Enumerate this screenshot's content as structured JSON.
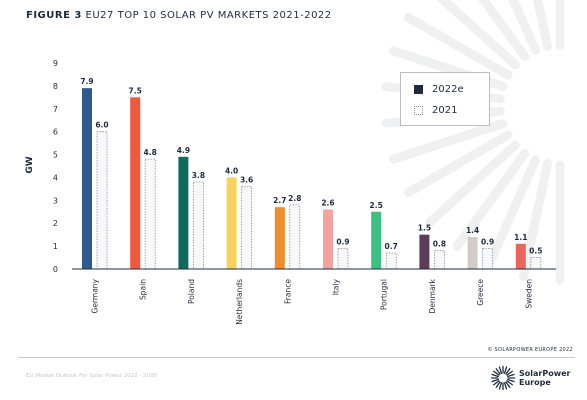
{
  "header": {
    "figure_label": "FIGURE 3",
    "title_rest": "EU27 TOP 10 SOLAR PV MARKETS 2021-2022"
  },
  "chart_data": {
    "type": "bar",
    "categories": [
      "Germany",
      "Spain",
      "Poland",
      "Netherlands",
      "France",
      "Italy",
      "Portugal",
      "Denmark",
      "Greece",
      "Sweden"
    ],
    "series": [
      {
        "name": "2022e",
        "values": [
          7.9,
          7.5,
          4.9,
          4.0,
          2.7,
          2.6,
          2.5,
          1.5,
          1.4,
          1.1
        ],
        "value_labels": [
          "7.9",
          "7.5",
          "4.9",
          "4.0",
          "2.7",
          "2.6",
          "2.5",
          "1.5",
          "1.4",
          "1.1"
        ],
        "colors": [
          "#2e5a8c",
          "#f05a3c",
          "#0e6b5c",
          "#f9d25e",
          "#f28c2a",
          "#f4a3a0",
          "#3fbf7f",
          "#5b3d57",
          "#d3cbc7",
          "#e8675a"
        ]
      },
      {
        "name": "2021",
        "values": [
          6.0,
          4.8,
          3.8,
          3.6,
          2.8,
          0.9,
          0.7,
          0.8,
          0.9,
          0.5
        ],
        "value_labels": [
          "6.0",
          "4.8",
          "3.8",
          "3.6",
          "2.8",
          "0.9",
          "0.7",
          "0.8",
          "0.9",
          "0.5"
        ],
        "style": "dotted-outline"
      }
    ],
    "ylabel": "GW",
    "ylim": [
      0,
      9
    ],
    "yticks": [
      "0",
      "1",
      "2",
      "3",
      "4",
      "5",
      "6",
      "7",
      "8",
      "9"
    ],
    "grid": false,
    "legend": {
      "position": "top-right",
      "items": [
        {
          "label": "2022e",
          "color": "#1f2b3d"
        },
        {
          "label": "2021",
          "color": "#ffffff"
        }
      ]
    }
  },
  "colors": {
    "text_dark": "#1f2b3d",
    "axis": "#1f2b3d",
    "outline_2021": "#8a8f99",
    "fill_2021": "#f7f8f9",
    "sunburst": "#eef0f2"
  },
  "footer": {
    "copyright": "© SOLARPOWER EUROPE 2022",
    "report_title": "EU Market Outlook For Solar Power 2022 - 2026",
    "brand_line1": "SolarPower",
    "brand_line2": "Europe",
    "logo_icon": "sunburst-logo-icon"
  }
}
